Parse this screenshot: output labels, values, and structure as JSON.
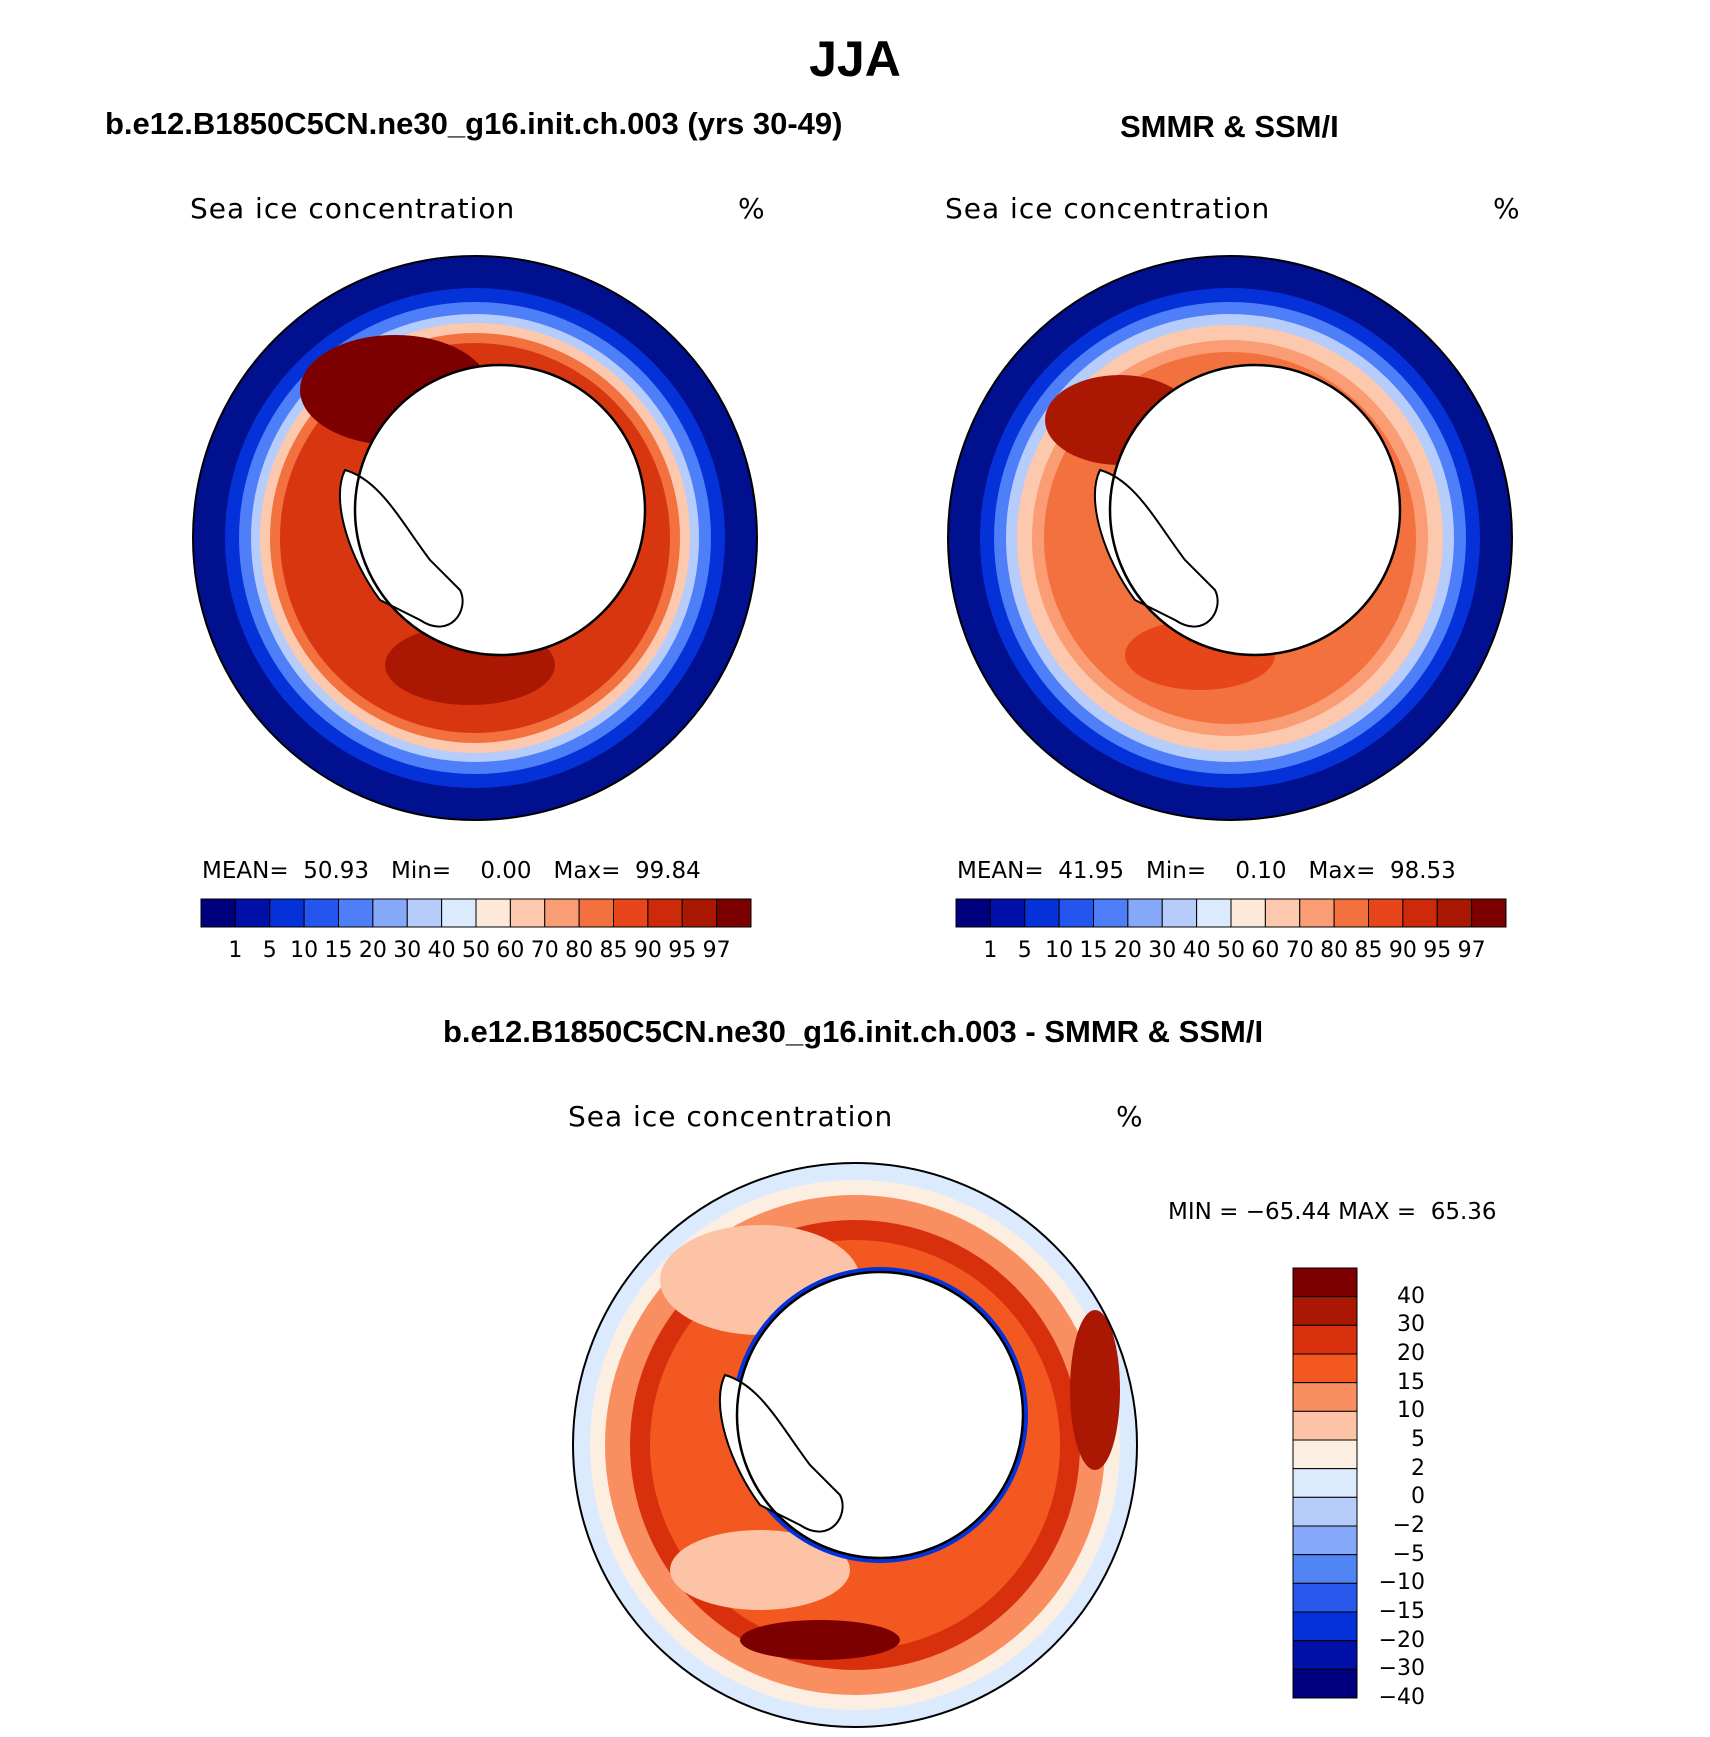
{
  "title": "JJA",
  "colors": {
    "conc_scale": [
      "#00007f",
      "#0010a8",
      "#0532d8",
      "#2456ef",
      "#4e7ef8",
      "#86a8f8",
      "#b6cdfb",
      "#dceafe",
      "#fde9da",
      "#fcc8ae",
      "#fa9c74",
      "#f3703f",
      "#e6461a",
      "#cc2a0a",
      "#aa1703",
      "#7d0000"
    ],
    "diff_scale": [
      "#7d0000",
      "#aa1703",
      "#d8300c",
      "#f2581f",
      "#f98e60",
      "#fcc3a6",
      "#fdeee2",
      "#dceafe",
      "#b6cdfb",
      "#86a8f8",
      "#5285f4",
      "#2a58ed",
      "#0532d8",
      "#0010a8",
      "#00007f"
    ],
    "land_outline": "#000000",
    "background": "#ffffff"
  },
  "chart_data": [
    {
      "type": "heatmap",
      "projection": "south-polar-stereographic",
      "panel_title": "b.e12.B1850C5CN.ne30_g16.init.ch.003 (yrs 30-49)",
      "variable": "Sea ice concentration",
      "units": "%",
      "mean_label": "MEAN=",
      "mean": "50.93",
      "min_label": "Min=",
      "min": "0.00",
      "max_label": "Max=",
      "max": "99.84",
      "colorbar_ticks": [
        "1",
        "5",
        "10",
        "15",
        "20",
        "30",
        "40",
        "50",
        "60",
        "70",
        "80",
        "85",
        "90",
        "95",
        "97"
      ]
    },
    {
      "type": "heatmap",
      "projection": "south-polar-stereographic",
      "panel_title": "SMMR & SSM/I",
      "variable": "Sea ice concentration",
      "units": "%",
      "mean_label": "MEAN=",
      "mean": "41.95",
      "min_label": "Min=",
      "min": "0.10",
      "max_label": "Max=",
      "max": "98.53",
      "colorbar_ticks": [
        "1",
        "5",
        "10",
        "15",
        "20",
        "30",
        "40",
        "50",
        "60",
        "70",
        "80",
        "85",
        "90",
        "95",
        "97"
      ]
    },
    {
      "type": "heatmap",
      "projection": "south-polar-stereographic",
      "panel_title": "b.e12.B1850C5CN.ne30_g16.init.ch.003 - SMMR & SSM/I",
      "variable": "Sea ice concentration",
      "units": "%",
      "min_label": "MIN =",
      "min": "−65.44",
      "max_label": "MAX =",
      "max": "65.36",
      "colorbar_ticks": [
        "40",
        "30",
        "20",
        "15",
        "10",
        "5",
        "2",
        "0",
        "−2",
        "−5",
        "−10",
        "−15",
        "−20",
        "−30",
        "−40"
      ]
    }
  ]
}
